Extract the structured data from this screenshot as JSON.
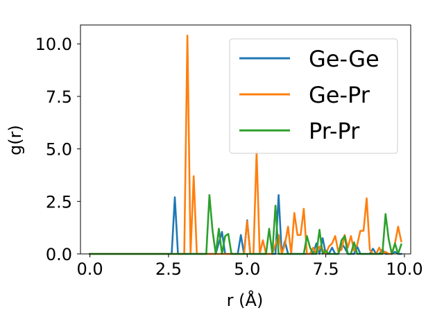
{
  "chart_data": {
    "type": "line",
    "xlabel": "r (Å)",
    "ylabel": "g(r)",
    "xlim": [
      -0.3,
      10.2
    ],
    "ylim": [
      0,
      10.9
    ],
    "grid": false,
    "legend_placement": "top-right",
    "x_ticks": [
      0.0,
      2.5,
      5.0,
      7.5,
      10.0
    ],
    "x_tick_labels": [
      "0.0",
      "2.5",
      "5.0",
      "7.5",
      "10.0"
    ],
    "y_ticks": [
      0.0,
      2.5,
      5.0,
      7.5,
      10.0
    ],
    "y_tick_labels": [
      "0.0",
      "2.5",
      "5.0",
      "7.5",
      "10.0"
    ],
    "series": [
      {
        "name": "Ge-Ge",
        "color": "#1f77b4",
        "x": [
          0.0,
          2.6,
          2.7,
          2.8,
          4.0,
          4.2,
          4.3,
          4.4,
          4.5,
          4.6,
          4.7,
          4.8,
          4.9,
          5.0,
          5.1,
          5.2,
          5.3,
          5.4,
          5.5,
          5.6,
          5.7,
          5.8,
          5.9,
          6.0,
          6.1,
          6.2,
          6.3,
          6.4,
          6.5,
          6.6,
          6.7,
          6.8,
          6.9,
          7.0,
          7.1,
          7.2,
          7.3,
          7.4,
          7.5,
          7.6,
          7.7,
          7.8,
          7.9,
          8.0,
          8.1,
          8.2,
          8.3,
          8.4,
          8.5,
          8.6,
          8.7,
          8.8,
          8.9,
          9.0,
          9.1,
          9.2,
          9.3,
          9.4,
          9.5,
          9.6,
          9.7,
          9.8,
          9.9
        ],
        "y": [
          0,
          0,
          2.7,
          0,
          0,
          1.05,
          0,
          0,
          0,
          0,
          0,
          0.9,
          0,
          1.6,
          0,
          0,
          0,
          0,
          0,
          0,
          0,
          0,
          0,
          2.8,
          0,
          0.6,
          0,
          0,
          0,
          0,
          0,
          0,
          0,
          0,
          0,
          0.5,
          0,
          0.75,
          0,
          0,
          0.3,
          0,
          0,
          0.5,
          0.3,
          0,
          0,
          0,
          0.35,
          0,
          0,
          0,
          0,
          0.25,
          0,
          0,
          0.2,
          0,
          0,
          0,
          0.1,
          0,
          0
        ]
      },
      {
        "name": "Ge-Pr",
        "color": "#ff7f0e",
        "x": [
          0.0,
          2.9,
          3.0,
          3.1,
          3.2,
          3.3,
          3.4,
          4.9,
          5.0,
          5.1,
          5.2,
          5.3,
          5.4,
          5.5,
          5.6,
          5.7,
          5.8,
          5.9,
          6.0,
          6.1,
          6.2,
          6.3,
          6.4,
          6.5,
          6.6,
          6.7,
          6.8,
          6.9,
          7.0,
          7.1,
          7.2,
          7.3,
          7.4,
          7.5,
          7.6,
          7.7,
          7.8,
          7.9,
          8.0,
          8.1,
          8.2,
          8.3,
          8.4,
          8.5,
          8.6,
          8.7,
          8.8,
          8.9,
          9.0,
          9.1,
          9.2,
          9.3,
          9.4,
          9.5,
          9.6,
          9.7,
          9.8,
          9.9
        ],
        "y": [
          0,
          0,
          0,
          10.4,
          0,
          3.7,
          0,
          0,
          1.55,
          0,
          0,
          4.85,
          0,
          0.65,
          0,
          0,
          0,
          0.45,
          0.9,
          0,
          0.45,
          1.3,
          0,
          1.95,
          0.9,
          0.9,
          2.15,
          0,
          0,
          0.3,
          0,
          0.35,
          0.2,
          0,
          0.35,
          0.5,
          0.85,
          0.1,
          0.2,
          0.9,
          0.3,
          0.85,
          0.15,
          0.45,
          1.1,
          1.1,
          2.65,
          0.2,
          0,
          0,
          0.3,
          0,
          0.1,
          0,
          0,
          0.5,
          1.3,
          0.6
        ]
      },
      {
        "name": "Pr-Pr",
        "color": "#2ca02c",
        "x": [
          0.0,
          3.7,
          3.8,
          3.9,
          4.0,
          4.1,
          4.2,
          4.3,
          4.4,
          4.5,
          4.6,
          4.7,
          4.8,
          4.9,
          5.0,
          5.1,
          5.2,
          5.3,
          5.4,
          5.5,
          5.6,
          5.7,
          5.8,
          5.9,
          6.0,
          6.1,
          6.2,
          6.3,
          6.4,
          6.5,
          6.6,
          6.7,
          6.8,
          6.9,
          7.0,
          7.1,
          7.2,
          7.3,
          7.4,
          7.5,
          7.6,
          7.7,
          7.8,
          7.9,
          8.0,
          8.1,
          8.2,
          8.3,
          8.4,
          8.5,
          8.6,
          8.7,
          8.8,
          8.9,
          9.0,
          9.1,
          9.2,
          9.3,
          9.4,
          9.5,
          9.6,
          9.7,
          9.8,
          9.9
        ],
        "y": [
          0,
          0,
          2.8,
          1.1,
          0,
          1.2,
          0,
          0.85,
          0.95,
          0,
          0,
          0,
          0,
          0,
          0,
          0,
          0,
          0,
          0,
          0,
          0,
          1.2,
          0,
          2.3,
          0,
          0,
          0,
          0,
          0,
          0,
          0,
          0,
          0,
          0.85,
          0.3,
          0,
          0,
          1.15,
          0,
          0.15,
          0,
          0,
          0,
          0,
          0.65,
          0.85,
          0,
          0,
          0.55,
          0,
          0,
          0,
          0,
          0,
          0,
          0,
          0,
          0,
          1.9,
          0.7,
          0,
          0.5,
          0,
          0.45
        ]
      }
    ]
  }
}
